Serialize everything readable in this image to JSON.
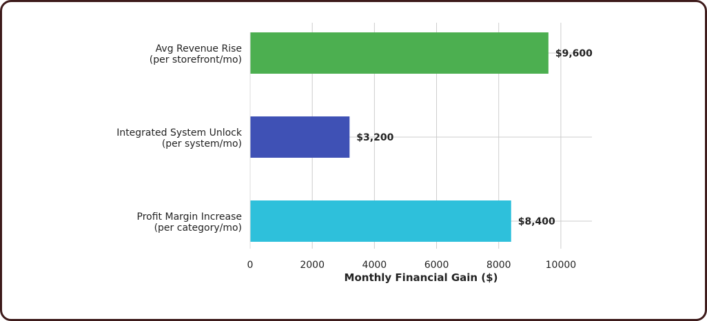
{
  "chart_data": {
    "type": "bar",
    "orientation": "horizontal",
    "categories": [
      [
        "Avg Revenue Rise",
        "(per storefront/mo)"
      ],
      [
        "Integrated System Unlock",
        "(per system/mo)"
      ],
      [
        "Profit Margin Increase",
        "(per category/mo)"
      ]
    ],
    "values": [
      9600,
      3200,
      8400
    ],
    "value_labels": [
      "$9,600",
      "$3,200",
      "$8,400"
    ],
    "colors": [
      "#4caf50",
      "#3f51b5",
      "#2ec0db"
    ],
    "xticks": [
      0,
      2000,
      4000,
      6000,
      8000,
      10000
    ],
    "xlim": [
      0,
      11000
    ],
    "xlabel": "Monthly Financial Gain ($)",
    "ylabel": "",
    "title": "",
    "grid": true
  }
}
